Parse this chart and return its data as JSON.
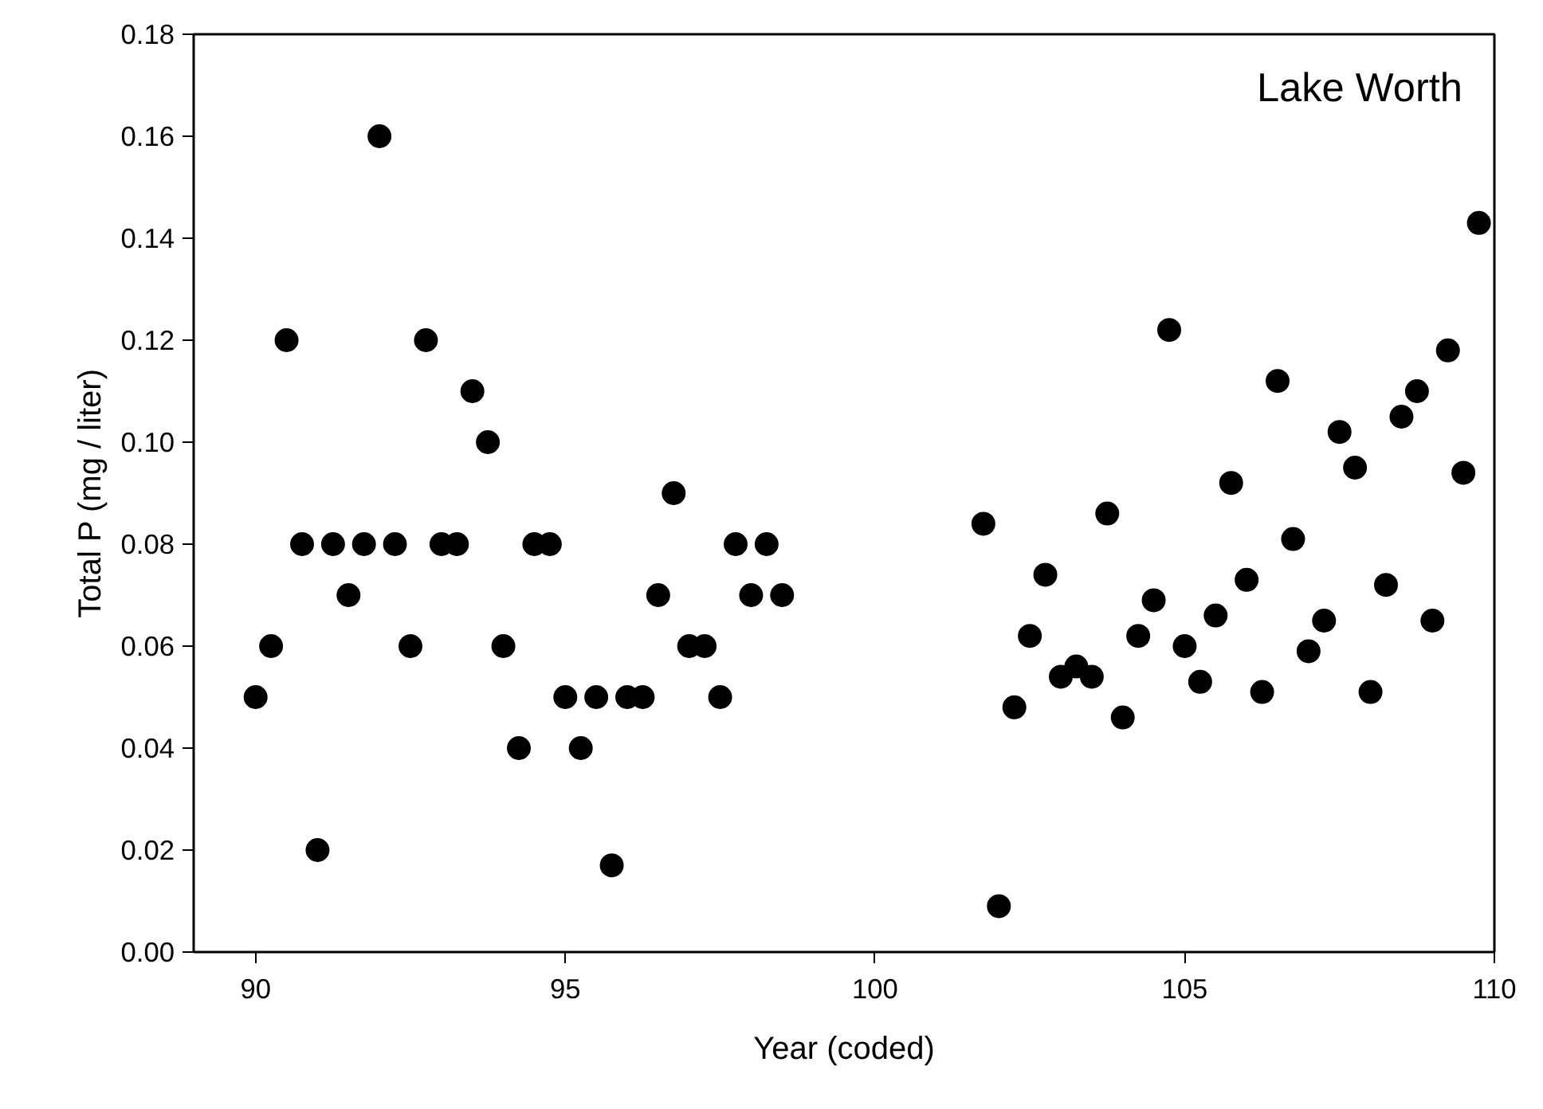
{
  "chart_data": {
    "type": "scatter",
    "xlabel": "Year (coded)",
    "ylabel": "Total P (mg / liter)",
    "annotations": [
      "Lake Worth"
    ],
    "x": [
      90,
      90.25,
      90.5,
      90.75,
      91,
      91.25,
      91.5,
      91.75,
      92,
      92.25,
      92.5,
      92.75,
      93,
      93.25,
      93.5,
      93.75,
      94,
      94.25,
      94.5,
      94.75,
      95,
      95.25,
      95.5,
      95.75,
      96,
      96.25,
      96.5,
      96.75,
      97,
      97.25,
      97.5,
      97.75,
      98,
      98.25,
      98.5,
      101.75,
      102,
      102.25,
      102.5,
      102.75,
      103,
      103.25,
      103.5,
      103.75,
      104,
      104.25,
      104.5,
      104.75,
      105,
      105.25,
      105.5,
      105.75,
      106,
      106.25,
      106.5,
      106.75,
      107,
      107.25,
      107.5,
      107.75,
      108,
      108.25,
      108.5,
      108.75,
      109,
      109.25,
      109.5,
      109.75
    ],
    "values": [
      0.05,
      0.06,
      0.12,
      0.08,
      0.02,
      0.08,
      0.07,
      0.08,
      0.16,
      0.08,
      0.06,
      0.12,
      0.08,
      0.08,
      0.11,
      0.1,
      0.06,
      0.04,
      0.08,
      0.08,
      0.05,
      0.04,
      0.05,
      0.017,
      0.05,
      0.05,
      0.07,
      0.09,
      0.06,
      0.06,
      0.05,
      0.08,
      0.07,
      0.08,
      0.07,
      0.084,
      0.009,
      0.048,
      0.062,
      0.074,
      0.054,
      0.056,
      0.054,
      0.086,
      0.046,
      0.062,
      0.069,
      0.122,
      0.06,
      0.053,
      0.066,
      0.092,
      0.073,
      0.051,
      0.112,
      0.081,
      0.059,
      0.065,
      0.102,
      0.095,
      0.051,
      0.072,
      0.105,
      0.11,
      0.065,
      0.118,
      0.094,
      0.143
    ],
    "color": "#000000",
    "marker": "circle",
    "grid": false,
    "xlim": [
      89,
      110
    ],
    "ylim": [
      0,
      0.18
    ],
    "xticks": [
      90,
      95,
      100,
      105,
      110
    ],
    "yticks": [
      {
        "value": 0,
        "label": "0.00"
      },
      {
        "value": 0.02,
        "label": "0.02"
      },
      {
        "value": 0.04,
        "label": "0.04"
      },
      {
        "value": 0.06,
        "label": "0.06"
      },
      {
        "value": 0.08,
        "label": "0.08"
      },
      {
        "value": 0.1,
        "label": "0.10"
      },
      {
        "value": 0.12,
        "label": "0.12"
      },
      {
        "value": 0.14,
        "label": "0.14"
      },
      {
        "value": 0.16,
        "label": "0.16"
      },
      {
        "value": 0.18,
        "label": "0.18"
      }
    ]
  }
}
